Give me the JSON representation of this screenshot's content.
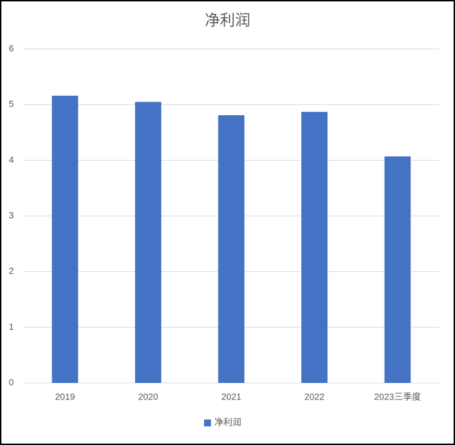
{
  "chart_data": {
    "type": "bar",
    "title": "净利润",
    "categories": [
      "2019",
      "2020",
      "2021",
      "2022",
      "2023三季度"
    ],
    "series": [
      {
        "name": "净利润",
        "color": "#4472c4",
        "values": [
          5.16,
          5.05,
          4.81,
          4.87,
          4.07
        ]
      }
    ],
    "ylim": [
      0,
      6
    ],
    "yticks": [
      0,
      1,
      2,
      3,
      4,
      5,
      6
    ],
    "grid": true,
    "legend": "bottom"
  }
}
